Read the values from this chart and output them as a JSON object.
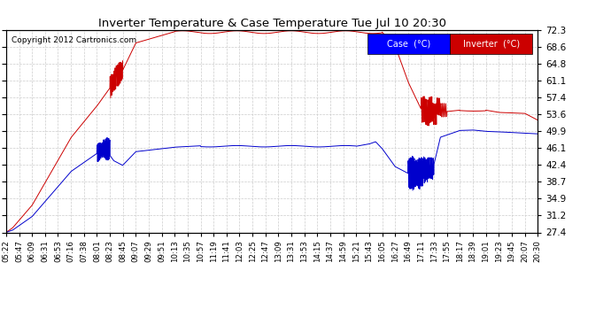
{
  "title": "Inverter Temperature & Case Temperature Tue Jul 10 20:30",
  "copyright": "Copyright 2012 Cartronics.com",
  "background_color": "#ffffff",
  "plot_bg_color": "#ffffff",
  "grid_color": "#cccccc",
  "yticks": [
    27.4,
    31.2,
    34.9,
    38.7,
    42.4,
    46.1,
    49.9,
    53.6,
    57.4,
    61.1,
    64.8,
    68.6,
    72.3
  ],
  "ylim": [
    27.4,
    72.3
  ],
  "xtick_labels": [
    "05:22",
    "05:47",
    "06:09",
    "06:31",
    "06:53",
    "07:16",
    "07:38",
    "08:01",
    "08:23",
    "08:45",
    "09:07",
    "09:29",
    "09:51",
    "10:13",
    "10:35",
    "10:57",
    "11:19",
    "11:41",
    "12:03",
    "12:25",
    "12:47",
    "13:09",
    "13:31",
    "13:53",
    "14:15",
    "14:37",
    "14:59",
    "15:21",
    "15:43",
    "16:05",
    "16:27",
    "16:49",
    "17:11",
    "17:33",
    "17:55",
    "18:17",
    "18:39",
    "19:01",
    "19:23",
    "19:45",
    "20:07",
    "20:30"
  ],
  "case_color": "#0000cc",
  "inverter_color": "#cc0000",
  "legend_case_bg": "#0000ff",
  "legend_inverter_bg": "#cc0000",
  "legend_case_text": "Case  (°C)",
  "legend_inverter_text": "Inverter  (°C)"
}
